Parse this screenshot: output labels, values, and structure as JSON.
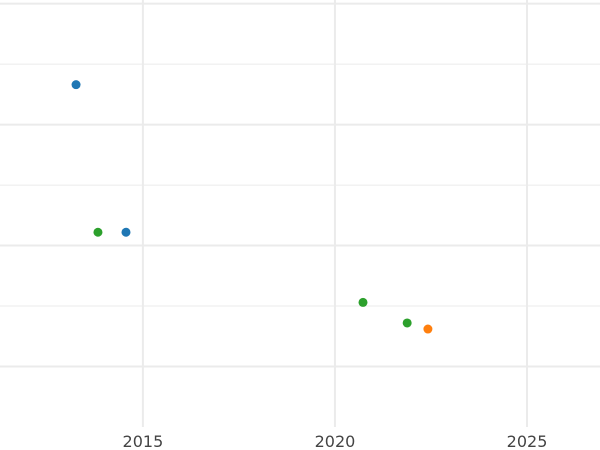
{
  "chart_data": {
    "type": "scatter",
    "title": "",
    "xlabel": "",
    "ylabel": "",
    "xlim": [
      2011.28,
      2026.9
    ],
    "ylim": [
      -0.5,
      3.03
    ],
    "x_ticks": [
      2015,
      2020,
      2025
    ],
    "x_tick_labels": [
      "2015",
      "2020",
      "2025"
    ],
    "y_major_grid": [
      0,
      1,
      2,
      3
    ],
    "y_minor_grid": [
      0.5,
      1.5,
      2.5
    ],
    "grid": true,
    "colors": {
      "blue": "#1f77b4",
      "orange": "#ff7f0e",
      "green": "#2ca02c",
      "grid": "#ebebeb"
    },
    "points": [
      {
        "x": 2013.26,
        "y": 2.33,
        "color": "#1f77b4"
      },
      {
        "x": 2013.83,
        "y": 1.11,
        "color": "#2ca02c"
      },
      {
        "x": 2014.56,
        "y": 1.11,
        "color": "#1f77b4"
      },
      {
        "x": 2020.73,
        "y": 0.53,
        "color": "#2ca02c"
      },
      {
        "x": 2021.88,
        "y": 0.36,
        "color": "#2ca02c"
      },
      {
        "x": 2022.42,
        "y": 0.31,
        "color": "#ff7f0e"
      }
    ]
  }
}
